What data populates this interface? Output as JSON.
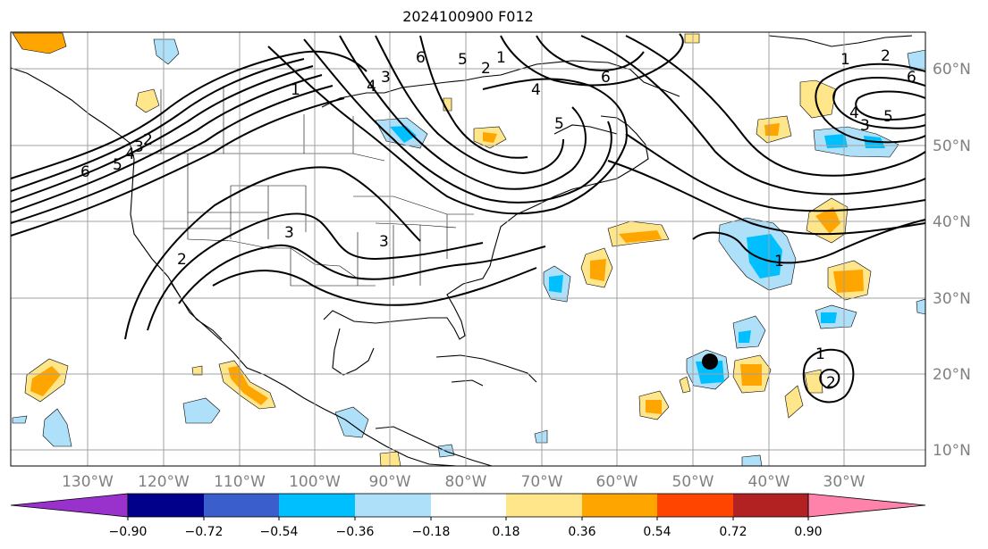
{
  "title": "2024100900 F012",
  "longitude_labels": [
    "130°W",
    "120°W",
    "110°W",
    "100°W",
    "90°W",
    "80°W",
    "70°W",
    "60°W",
    "50°W",
    "40°W",
    "30°W"
  ],
  "latitude_labels": [
    "60°N",
    "50°N",
    "40°N",
    "30°N",
    "20°N",
    "10°N"
  ],
  "colorbar": {
    "tick_labels": [
      "−0.90",
      "−0.72",
      "−0.54",
      "−0.36",
      "−0.18",
      "0.18",
      "0.36",
      "0.54",
      "0.72",
      "0.90"
    ],
    "colors": [
      "#9932cc",
      "#00008b",
      "#3a5fcd",
      "#00bfff",
      "#aee0f9",
      "#ffffff",
      "#ffe68a",
      "#ffa500",
      "#ff4500",
      "#b22222",
      "#ff82ab"
    ]
  },
  "contour_labels": [
    "6",
    "5",
    "4",
    "3",
    "2",
    "1",
    "6",
    "5",
    "4",
    "3",
    "2",
    "1",
    "3",
    "3",
    "2",
    "1",
    "1",
    "2",
    "6",
    "5",
    "4",
    "6",
    "5",
    "4",
    "3",
    "1",
    "2"
  ],
  "marker": {
    "type": "storm-center"
  }
}
